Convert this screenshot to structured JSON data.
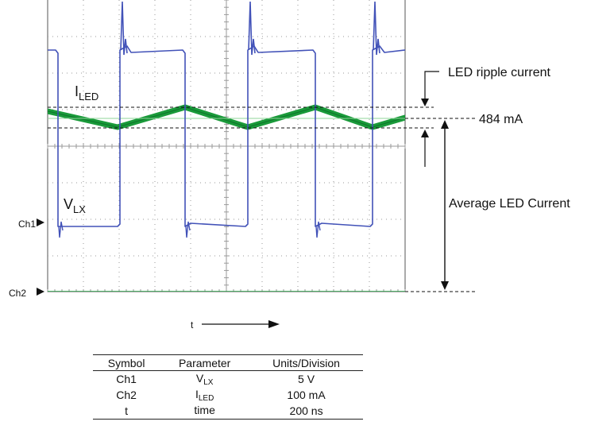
{
  "diagram": {
    "channel_markers": {
      "ch1": "Ch1",
      "ch2": "Ch2"
    },
    "trace_labels": {
      "iled": {
        "main": "I",
        "sub": "LED"
      },
      "vlx": {
        "main": "V",
        "sub": "LX"
      }
    },
    "annotations": {
      "ripple": "LED ripple current",
      "value": "484 mA",
      "average": "Average LED Current"
    },
    "time_axis_label": "t",
    "colors": {
      "vlx_trace": "#4252b8",
      "iled_trace": "#1a9a3a",
      "iled_mean": "#8fd49a",
      "grid": "#9a9a9a"
    }
  },
  "table": {
    "headers": [
      "Symbol",
      "Parameter",
      "Units/Division"
    ],
    "rows": [
      {
        "symbol": "Ch1",
        "param_main": "V",
        "param_sub": "LX",
        "units": "5 V"
      },
      {
        "symbol": "Ch2",
        "param_main": "I",
        "param_sub": "LED",
        "units": "100 mA"
      },
      {
        "symbol": "t",
        "param_main": "time",
        "param_sub": "",
        "units": "200 ns"
      }
    ]
  }
}
